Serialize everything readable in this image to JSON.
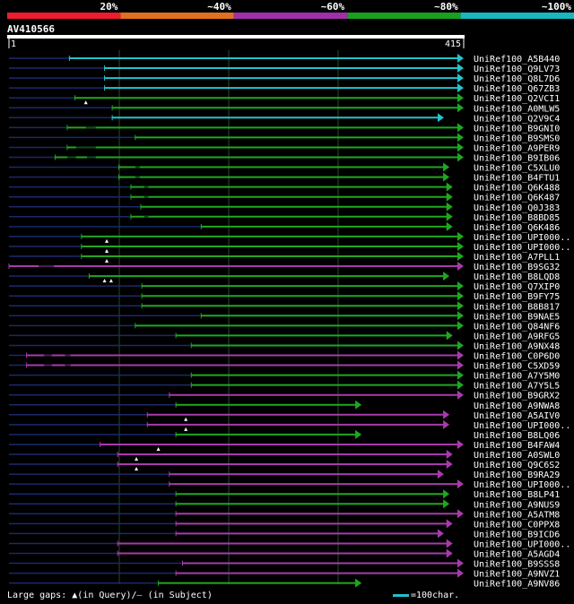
{
  "identity_scale": [
    {
      "label": "20%",
      "color": "#ee1c2c"
    },
    {
      "label": "~40%",
      "color": "#e07020"
    },
    {
      "label": "~60%",
      "color": "#a030a8"
    },
    {
      "label": "~80%",
      "color": "#18a020"
    },
    {
      "label": "~100%",
      "color": "#18b8c0"
    }
  ],
  "query": {
    "name": "AV410566",
    "start": "1",
    "end": "415",
    "length": 415
  },
  "tracks": [
    {
      "name": "UniRef100_A5B440",
      "color": "cyan",
      "start": 56,
      "end": 415,
      "gaps": [],
      "qmarks": []
    },
    {
      "name": "UniRef100_Q9LV73",
      "color": "cyan",
      "start": 88,
      "end": 415,
      "gaps": [],
      "qmarks": []
    },
    {
      "name": "UniRef100_Q8L7D6",
      "color": "cyan",
      "start": 88,
      "end": 415,
      "gaps": [],
      "qmarks": []
    },
    {
      "name": "UniRef100_Q67ZB3",
      "color": "cyan",
      "start": 88,
      "end": 415,
      "gaps": [],
      "qmarks": []
    },
    {
      "name": "UniRef100_Q2VCI1",
      "color": "green",
      "start": 61,
      "end": 415,
      "gaps": [],
      "qmarks": [
        71
      ]
    },
    {
      "name": "UniRef100_A0MLW5",
      "color": "green",
      "start": 95,
      "end": 415,
      "gaps": [],
      "qmarks": []
    },
    {
      "name": "UniRef100_Q2V9C4",
      "color": "cyan",
      "start": 95,
      "end": 397,
      "gaps": [],
      "qmarks": []
    },
    {
      "name": "UniRef100_B9GNI0",
      "color": "green",
      "start": 54,
      "end": 415,
      "gaps": [
        [
          71,
          80
        ]
      ],
      "qmarks": []
    },
    {
      "name": "UniRef100_B9SMS0",
      "color": "green",
      "start": 116,
      "end": 415,
      "gaps": [],
      "qmarks": []
    },
    {
      "name": "UniRef100_A9PER9",
      "color": "green",
      "start": 54,
      "end": 415,
      "gaps": [
        [
          62,
          80
        ]
      ],
      "qmarks": []
    },
    {
      "name": "UniRef100_B9IB06",
      "color": "green",
      "start": 43,
      "end": 415,
      "gaps": [
        [
          54,
          62
        ],
        [
          72,
          80
        ]
      ],
      "qmarks": []
    },
    {
      "name": "UniRef100_C5XLU0",
      "color": "green",
      "start": 101,
      "end": 402,
      "gaps": [
        [
          116,
          120
        ]
      ],
      "qmarks": []
    },
    {
      "name": "UniRef100_B4FTU1",
      "color": "green",
      "start": 101,
      "end": 402,
      "gaps": [
        [
          116,
          120
        ]
      ],
      "qmarks": []
    },
    {
      "name": "UniRef100_Q6K488",
      "color": "green",
      "start": 112,
      "end": 405,
      "gaps": [
        [
          124,
          128
        ]
      ],
      "qmarks": []
    },
    {
      "name": "UniRef100_Q6K487",
      "color": "green",
      "start": 112,
      "end": 405,
      "gaps": [
        [
          124,
          128
        ]
      ],
      "qmarks": []
    },
    {
      "name": "UniRef100_Q0J383",
      "color": "green",
      "start": 121,
      "end": 405,
      "gaps": [],
      "qmarks": []
    },
    {
      "name": "UniRef100_B8BD85",
      "color": "green",
      "start": 112,
      "end": 405,
      "gaps": [
        [
          124,
          128
        ]
      ],
      "qmarks": []
    },
    {
      "name": "UniRef100_Q6K486",
      "color": "green",
      "start": 176,
      "end": 405,
      "gaps": [],
      "qmarks": []
    },
    {
      "name": "UniRef100_UPI000..",
      "color": "green",
      "start": 67,
      "end": 415,
      "gaps": [],
      "qmarks": [
        90
      ]
    },
    {
      "name": "UniRef100_UPI000..",
      "color": "green",
      "start": 67,
      "end": 415,
      "gaps": [],
      "qmarks": [
        90
      ]
    },
    {
      "name": "UniRef100_A7PLL1",
      "color": "green",
      "start": 67,
      "end": 415,
      "gaps": [],
      "qmarks": [
        90
      ]
    },
    {
      "name": "UniRef100_B9SG32",
      "color": "purple",
      "start": 1,
      "end": 415,
      "gaps": [
        [
          28,
          42
        ]
      ],
      "qmarks": []
    },
    {
      "name": "UniRef100_B8LQD8",
      "color": "green",
      "start": 74,
      "end": 402,
      "gaps": [],
      "qmarks": [
        88,
        94
      ]
    },
    {
      "name": "UniRef100_Q7XIP0",
      "color": "green",
      "start": 122,
      "end": 415,
      "gaps": [],
      "qmarks": []
    },
    {
      "name": "UniRef100_B9FY75",
      "color": "green",
      "start": 122,
      "end": 415,
      "gaps": [],
      "qmarks": []
    },
    {
      "name": "UniRef100_B8B817",
      "color": "green",
      "start": 122,
      "end": 415,
      "gaps": [],
      "qmarks": []
    },
    {
      "name": "UniRef100_B9NAE5",
      "color": "green",
      "start": 176,
      "end": 415,
      "gaps": [],
      "qmarks": []
    },
    {
      "name": "UniRef100_Q84NF6",
      "color": "green",
      "start": 116,
      "end": 415,
      "gaps": [],
      "qmarks": []
    },
    {
      "name": "UniRef100_A9RFG5",
      "color": "green",
      "start": 153,
      "end": 405,
      "gaps": [],
      "qmarks": []
    },
    {
      "name": "UniRef100_A9NX48",
      "color": "green",
      "start": 167,
      "end": 415,
      "gaps": [],
      "qmarks": []
    },
    {
      "name": "UniRef100_C0P6D0",
      "color": "purple",
      "start": 17,
      "end": 415,
      "gaps": [
        [
          33,
          40
        ],
        [
          52,
          57
        ]
      ],
      "qmarks": []
    },
    {
      "name": "UniRef100_C5XD59",
      "color": "purple",
      "start": 17,
      "end": 415,
      "gaps": [
        [
          33,
          40
        ],
        [
          52,
          57
        ]
      ],
      "qmarks": []
    },
    {
      "name": "UniRef100_A7Y5M0",
      "color": "green",
      "start": 167,
      "end": 415,
      "gaps": [],
      "qmarks": []
    },
    {
      "name": "UniRef100_A7Y5L5",
      "color": "green",
      "start": 167,
      "end": 415,
      "gaps": [],
      "qmarks": []
    },
    {
      "name": "UniRef100_B9GRX2",
      "color": "purple",
      "start": 147,
      "end": 415,
      "gaps": [],
      "qmarks": []
    },
    {
      "name": "UniRef100_A9NWA8",
      "color": "green",
      "start": 153,
      "end": 322,
      "gaps": [],
      "qmarks": []
    },
    {
      "name": "UniRef100_A5AIV0",
      "color": "purple",
      "start": 127,
      "end": 402,
      "gaps": [],
      "qmarks": [
        162
      ]
    },
    {
      "name": "UniRef100_UPI000..",
      "color": "purple",
      "start": 127,
      "end": 402,
      "gaps": [],
      "qmarks": [
        162
      ]
    },
    {
      "name": "UniRef100_B8LQ06",
      "color": "green",
      "start": 153,
      "end": 322,
      "gaps": [],
      "qmarks": []
    },
    {
      "name": "UniRef100_B4FAW4",
      "color": "purple",
      "start": 84,
      "end": 415,
      "gaps": [],
      "qmarks": [
        137
      ]
    },
    {
      "name": "UniRef100_A0SWL0",
      "color": "purple",
      "start": 100,
      "end": 405,
      "gaps": [],
      "qmarks": [
        117
      ]
    },
    {
      "name": "UniRef100_Q9C6S2",
      "color": "purple",
      "start": 100,
      "end": 405,
      "gaps": [],
      "qmarks": [
        117
      ]
    },
    {
      "name": "UniRef100_B9RA29",
      "color": "purple",
      "start": 147,
      "end": 397,
      "gaps": [],
      "qmarks": []
    },
    {
      "name": "UniRef100_UPI000..",
      "color": "purple",
      "start": 147,
      "end": 415,
      "gaps": [],
      "qmarks": []
    },
    {
      "name": "UniRef100_B8LP41",
      "color": "green",
      "start": 153,
      "end": 402,
      "gaps": [],
      "qmarks": []
    },
    {
      "name": "UniRef100_A9NUS9",
      "color": "green",
      "start": 153,
      "end": 402,
      "gaps": [],
      "qmarks": []
    },
    {
      "name": "UniRef100_A5ATM8",
      "color": "purple",
      "start": 153,
      "end": 415,
      "gaps": [],
      "qmarks": []
    },
    {
      "name": "UniRef100_C0PPX8",
      "color": "purple",
      "start": 153,
      "end": 405,
      "gaps": [],
      "qmarks": []
    },
    {
      "name": "UniRef100_B9ICD6",
      "color": "purple",
      "start": 153,
      "end": 397,
      "gaps": [],
      "qmarks": []
    },
    {
      "name": "UniRef100_UPI000..",
      "color": "purple",
      "start": 100,
      "end": 405,
      "gaps": [],
      "qmarks": []
    },
    {
      "name": "UniRef100_A5AGD4",
      "color": "purple",
      "start": 100,
      "end": 405,
      "gaps": [],
      "qmarks": []
    },
    {
      "name": "UniRef100_B9SSS8",
      "color": "purple",
      "start": 159,
      "end": 415,
      "gaps": [],
      "qmarks": []
    },
    {
      "name": "UniRef100_A9NVZ1",
      "color": "purple",
      "start": 153,
      "end": 415,
      "gaps": [],
      "qmarks": []
    },
    {
      "name": "UniRef100_A9NV86",
      "color": "green",
      "start": 137,
      "end": 322,
      "gaps": [],
      "qmarks": []
    }
  ],
  "footer": {
    "gaps_label": "Large gaps:",
    "query_gap_text": "(in Query)/",
    "subject_gap_text": "(in Subject)",
    "scale_text": "=100char."
  }
}
